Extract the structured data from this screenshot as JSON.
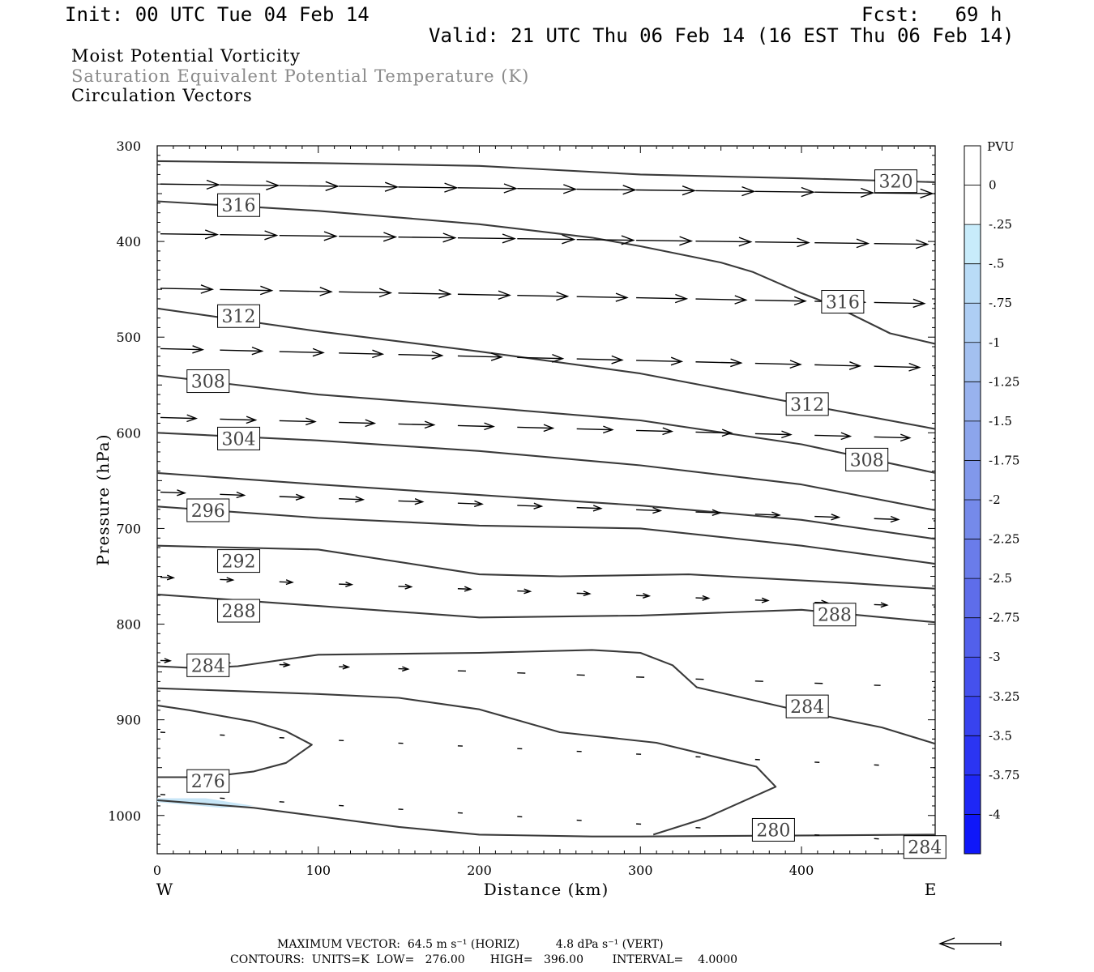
{
  "header": {
    "init": "Init: 00 UTC Tue 04 Feb 14",
    "fcst": "Fcst:   69 h",
    "valid": "Valid: 21 UTC Thu 06 Feb 14 (16 EST Thu 06 Feb 14)"
  },
  "titles": {
    "line1": "Moist Potential Vorticity",
    "line2": "Saturation Equivalent Potential Temperature (K)",
    "line3": "Circulation Vectors"
  },
  "footer": {
    "max_vector": "MAXIMUM VECTOR:  64.5 m s⁻¹ (HORIZ)          4.8 dPa s⁻¹ (VERT)",
    "contours": "CONTOURS:  UNITS=K  LOW=   276.00       HIGH=   396.00        INTERVAL=    4.0000"
  },
  "colors": {
    "contour": "#3a3a3a",
    "vector": "#000000",
    "negative_pv_light": "#c7e6f7"
  },
  "chart_data": {
    "type": "cross-section",
    "xlabel": "Distance (km)",
    "ylabel": "Pressure (hPa)",
    "xlim": [
      0,
      483
    ],
    "ylim": [
      1040,
      300
    ],
    "x_ticks": [
      0,
      100,
      200,
      300,
      400
    ],
    "y_ticks": [
      300,
      400,
      500,
      600,
      700,
      800,
      900,
      1000
    ],
    "x_end_labels": {
      "left": "W",
      "right": "E"
    },
    "colorbar": {
      "unit": "PVU",
      "ticks": [
        "0",
        "-.25",
        "-.5",
        "-.75",
        "-1",
        "-1.25",
        "-1.5",
        "-1.75",
        "-2",
        "-2.25",
        "-2.5",
        "-2.75",
        "-3",
        "-3.25",
        "-3.5",
        "-3.75",
        "-4"
      ],
      "colors": [
        "#ffffff",
        "#ffffff",
        "#c8ecfb",
        "#b9dcf7",
        "#aecef4",
        "#a3c0f0",
        "#98b2ee",
        "#8ca5ec",
        "#8198eb",
        "#758aea",
        "#6a7cea",
        "#5e6dea",
        "#5260eb",
        "#4551ed",
        "#3843ef",
        "#2b35f2",
        "#1e27f6",
        "#0f17f9"
      ]
    },
    "contour_labels": [
      {
        "text": "320",
        "x": 445,
        "p": 337
      },
      {
        "text": "316",
        "x": 37,
        "p": 362
      },
      {
        "text": "316",
        "x": 412,
        "p": 463
      },
      {
        "text": "312",
        "x": 37,
        "p": 478
      },
      {
        "text": "312",
        "x": 390,
        "p": 570
      },
      {
        "text": "308",
        "x": 18,
        "p": 546
      },
      {
        "text": "308",
        "x": 427,
        "p": 628
      },
      {
        "text": "304",
        "x": 37,
        "p": 606
      },
      {
        "text": "296",
        "x": 18,
        "p": 681
      },
      {
        "text": "292",
        "x": 37,
        "p": 734
      },
      {
        "text": "288",
        "x": 37,
        "p": 786
      },
      {
        "text": "288",
        "x": 407,
        "p": 790
      },
      {
        "text": "284",
        "x": 18,
        "p": 843
      },
      {
        "text": "284",
        "x": 390,
        "p": 886
      },
      {
        "text": "276",
        "x": 18,
        "p": 964
      },
      {
        "text": "280",
        "x": 369,
        "p": 1015
      },
      {
        "text": "284",
        "x": 463,
        "p": 1033
      }
    ],
    "contours": [
      [
        [
          0,
          316
        ],
        [
          100,
          318
        ],
        [
          200,
          321
        ],
        [
          300,
          330
        ],
        [
          400,
          334
        ],
        [
          483,
          338
        ]
      ],
      [
        [
          260,
          300
        ],
        [
          483,
          300
        ]
      ],
      [
        [
          0,
          358
        ],
        [
          100,
          368
        ],
        [
          200,
          382
        ],
        [
          270,
          396
        ],
        [
          300,
          405
        ],
        [
          350,
          422
        ],
        [
          370,
          432
        ],
        [
          400,
          454
        ],
        [
          420,
          467
        ],
        [
          455,
          496
        ],
        [
          483,
          507
        ]
      ],
      [
        [
          0,
          470
        ],
        [
          100,
          494
        ],
        [
          200,
          515
        ],
        [
          300,
          538
        ],
        [
          400,
          570
        ],
        [
          483,
          596
        ]
      ],
      [
        [
          0,
          540
        ],
        [
          100,
          560
        ],
        [
          200,
          573
        ],
        [
          300,
          587
        ],
        [
          400,
          612
        ],
        [
          483,
          642
        ]
      ],
      [
        [
          0,
          600
        ],
        [
          100,
          608
        ],
        [
          200,
          619
        ],
        [
          300,
          634
        ],
        [
          400,
          654
        ],
        [
          483,
          681
        ]
      ],
      [
        [
          0,
          642
        ],
        [
          100,
          654
        ],
        [
          200,
          665
        ],
        [
          300,
          676
        ],
        [
          400,
          691
        ],
        [
          483,
          711
        ]
      ],
      [
        [
          0,
          677
        ],
        [
          100,
          689
        ],
        [
          200,
          697
        ],
        [
          300,
          700
        ],
        [
          400,
          718
        ],
        [
          483,
          737
        ]
      ],
      [
        [
          0,
          718
        ],
        [
          100,
          722
        ],
        [
          200,
          748
        ],
        [
          250,
          750
        ],
        [
          330,
          748
        ],
        [
          430,
          757
        ],
        [
          483,
          763
        ]
      ],
      [
        [
          0,
          769
        ],
        [
          100,
          781
        ],
        [
          200,
          793
        ],
        [
          300,
          791
        ],
        [
          400,
          785
        ],
        [
          483,
          798
        ]
      ],
      [
        [
          0,
          844
        ],
        [
          25,
          846
        ],
        [
          50,
          844
        ],
        [
          100,
          832
        ],
        [
          200,
          830
        ],
        [
          270,
          827
        ],
        [
          300,
          830
        ],
        [
          320,
          843
        ],
        [
          335,
          866
        ],
        [
          400,
          891
        ],
        [
          450,
          908
        ],
        [
          483,
          925
        ]
      ],
      [
        [
          0,
          867
        ],
        [
          100,
          873
        ],
        [
          150,
          877
        ],
        [
          200,
          889
        ],
        [
          250,
          913
        ],
        [
          310,
          924
        ],
        [
          372,
          949
        ],
        [
          384,
          970
        ],
        [
          340,
          1003
        ],
        [
          308,
          1020
        ]
      ],
      [
        [
          0,
          885
        ],
        [
          20,
          890
        ],
        [
          60,
          902
        ],
        [
          80,
          912
        ],
        [
          96,
          926
        ],
        [
          80,
          945
        ],
        [
          60,
          954
        ],
        [
          30,
          960
        ],
        [
          0,
          960
        ]
      ],
      [
        [
          0,
          984
        ],
        [
          60,
          992
        ],
        [
          150,
          1012
        ],
        [
          200,
          1020
        ],
        [
          270,
          1022
        ],
        [
          300,
          1022
        ],
        [
          483,
          1020
        ]
      ]
    ],
    "vectors": {
      "rows": [
        {
          "p": 340,
          "y0": 340,
          "y1": 350,
          "lengths": [
            36,
            36,
            36,
            36,
            36,
            36,
            36,
            36,
            36,
            36,
            36,
            36,
            36,
            36
          ]
        },
        {
          "p": 392,
          "y0": 392,
          "y1": 403,
          "lengths": [
            35,
            35,
            35,
            35,
            35,
            35,
            35,
            35,
            34,
            34,
            33,
            33,
            33,
            33
          ]
        },
        {
          "p": 449,
          "y0": 449,
          "y1": 465,
          "lengths": [
            32,
            32,
            32,
            32,
            32,
            32,
            31,
            31,
            31,
            31,
            31,
            31,
            31,
            31
          ]
        },
        {
          "p": 512,
          "y0": 512,
          "y1": 532,
          "lengths": [
            26,
            26,
            27,
            27,
            27,
            27,
            28,
            28,
            28,
            28,
            28,
            28,
            28,
            29
          ]
        },
        {
          "p": 584,
          "y0": 584,
          "y1": 606,
          "lengths": [
            22,
            22,
            22,
            22,
            22,
            22,
            22,
            22,
            22,
            22,
            22,
            22,
            22,
            22
          ]
        },
        {
          "p": 662,
          "y0": 662,
          "y1": 692,
          "lengths": [
            15,
            15,
            15,
            15,
            15,
            15,
            15,
            15,
            15,
            15,
            15,
            15,
            15,
            15
          ]
        },
        {
          "p": 751,
          "y0": 751,
          "y1": 782,
          "lengths": [
            8,
            8,
            8,
            8,
            8,
            8,
            8,
            8,
            8,
            8,
            8,
            8,
            8,
            8
          ]
        },
        {
          "p": 838,
          "y0": 838,
          "y1": 866,
          "lengths": [
            6,
            6,
            6,
            6,
            6,
            5,
            5,
            5,
            5,
            5,
            5,
            5,
            4,
            4
          ]
        },
        {
          "p": 913,
          "y0": 913,
          "y1": 950,
          "lengths": [
            3,
            3,
            3,
            3,
            3,
            3,
            3,
            3,
            3,
            3,
            3,
            3,
            3,
            3
          ]
        },
        {
          "p": 978,
          "y0": 978,
          "y1": 1028,
          "lengths": [
            3,
            3,
            3,
            3,
            3,
            3,
            3,
            3,
            3,
            3,
            3,
            3,
            3,
            3
          ]
        }
      ]
    }
  }
}
